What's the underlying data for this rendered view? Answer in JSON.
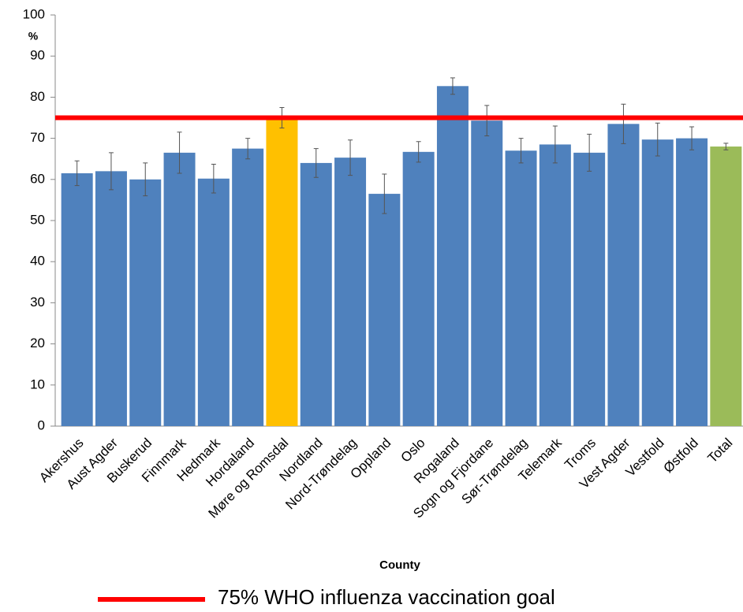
{
  "chart_data": {
    "type": "bar",
    "y_axis_label": "%",
    "x_axis_label": "County",
    "categories": [
      "Akershus",
      "Aust Agder",
      "Buskerud",
      "Finnmark",
      "Hedmark",
      "Hordaland",
      "Møre og Romsdal",
      "Nordland",
      "Nord-Trøndelag",
      "Oppland",
      "Oslo",
      "Rogaland",
      "Sogn og Fjordane",
      "Sør-Trøndelag",
      "Telemark",
      "Troms",
      "Vest Agder",
      "Vestfold",
      "Østfold",
      "Total"
    ],
    "values": [
      61.5,
      62,
      60,
      66.5,
      60.2,
      67.5,
      75,
      64,
      65.3,
      56.5,
      66.7,
      82.7,
      74.3,
      67,
      68.5,
      66.5,
      73.5,
      69.7,
      70,
      68
    ],
    "errors": [
      3,
      4.5,
      4,
      5,
      3.5,
      2.5,
      2.5,
      3.5,
      4.3,
      4.8,
      2.5,
      2,
      3.7,
      3,
      4.5,
      4.5,
      4.8,
      4,
      2.8,
      0.8
    ],
    "colors": [
      "#4f81bd",
      "#4f81bd",
      "#4f81bd",
      "#4f81bd",
      "#4f81bd",
      "#4f81bd",
      "#ffc000",
      "#4f81bd",
      "#4f81bd",
      "#4f81bd",
      "#4f81bd",
      "#4f81bd",
      "#4f81bd",
      "#4f81bd",
      "#4f81bd",
      "#4f81bd",
      "#4f81bd",
      "#4f81bd",
      "#4f81bd",
      "#9bbb59"
    ],
    "reference_line": {
      "value": 75,
      "label": "75% WHO influenza vaccination goal",
      "color": "#ff0000"
    },
    "ylim": [
      0,
      100
    ],
    "yticks": [
      0,
      10,
      20,
      30,
      40,
      50,
      60,
      70,
      80,
      90,
      100
    ],
    "grid": false
  }
}
